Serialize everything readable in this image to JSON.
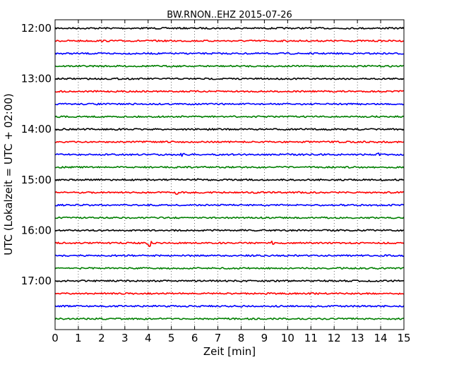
{
  "chart_data": {
    "type": "line",
    "title": "BW.RNON..EHZ 2015-07-26",
    "xlabel": "Zeit  [min]",
    "ylabel": "UTC (Lokalzeit = UTC + 02:00)",
    "xlim": [
      0,
      15
    ],
    "x_ticks": [
      "0",
      "1",
      "2",
      "3",
      "4",
      "5",
      "6",
      "7",
      "8",
      "9",
      "10",
      "11",
      "12",
      "13",
      "14",
      "15"
    ],
    "y_ticks": [
      "12:00",
      "13:00",
      "14:00",
      "15:00",
      "16:00",
      "17:00"
    ],
    "grid": "vertical dotted",
    "trace_colors": [
      "#000000",
      "#ff0000",
      "#0000ff",
      "#007f00"
    ],
    "traces": [
      {
        "start": "12:00",
        "color": "#000000"
      },
      {
        "start": "12:15",
        "color": "#ff0000"
      },
      {
        "start": "12:30",
        "color": "#0000ff"
      },
      {
        "start": "12:45",
        "color": "#007f00"
      },
      {
        "start": "13:00",
        "color": "#000000"
      },
      {
        "start": "13:15",
        "color": "#ff0000"
      },
      {
        "start": "13:30",
        "color": "#0000ff"
      },
      {
        "start": "13:45",
        "color": "#007f00"
      },
      {
        "start": "14:00",
        "color": "#000000"
      },
      {
        "start": "14:15",
        "color": "#ff0000"
      },
      {
        "start": "14:30",
        "color": "#0000ff",
        "events": [
          {
            "t": 5.5,
            "amp": 3
          },
          {
            "t": 13.9,
            "amp": 2
          }
        ]
      },
      {
        "start": "14:45",
        "color": "#007f00"
      },
      {
        "start": "15:00",
        "color": "#000000",
        "events": [
          {
            "t": 6.2,
            "amp": 3
          }
        ]
      },
      {
        "start": "15:15",
        "color": "#ff0000",
        "events": [
          {
            "t": 5.2,
            "amp": 3
          }
        ]
      },
      {
        "start": "15:30",
        "color": "#0000ff"
      },
      {
        "start": "15:45",
        "color": "#007f00"
      },
      {
        "start": "16:00",
        "color": "#000000"
      },
      {
        "start": "16:15",
        "color": "#ff0000",
        "events": [
          {
            "t": 4.05,
            "amp": 7
          },
          {
            "t": 9.35,
            "amp": 3
          }
        ]
      },
      {
        "start": "16:30",
        "color": "#0000ff"
      },
      {
        "start": "16:45",
        "color": "#007f00"
      },
      {
        "start": "17:00",
        "color": "#000000"
      },
      {
        "start": "17:15",
        "color": "#ff0000"
      },
      {
        "start": "17:30",
        "color": "#0000ff"
      },
      {
        "start": "17:45",
        "color": "#007f00"
      }
    ]
  }
}
